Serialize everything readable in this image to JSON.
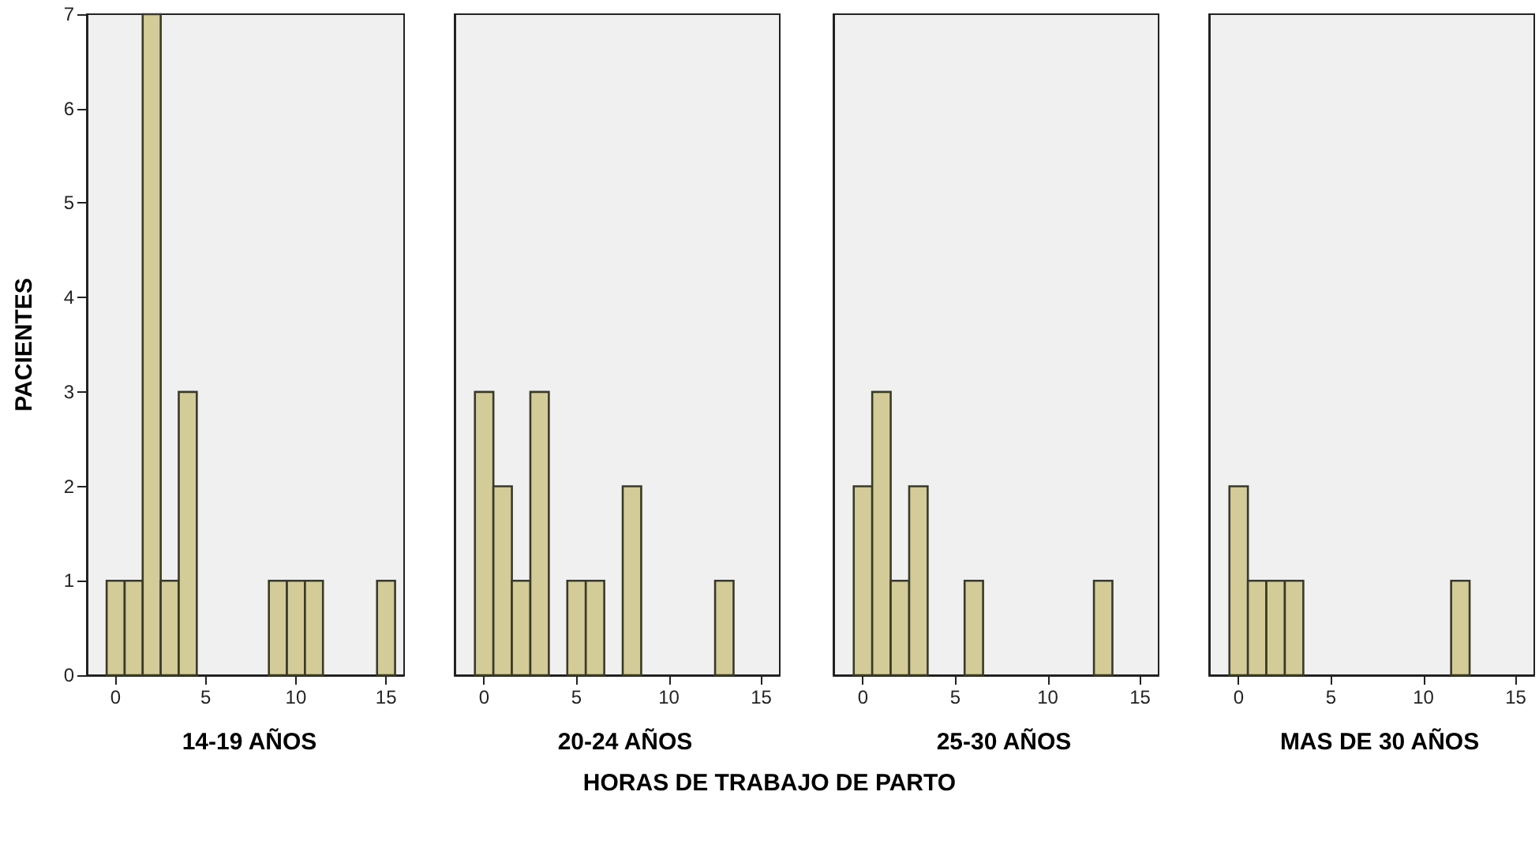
{
  "chart_data": [
    {
      "type": "histogram",
      "title": "14-19 AÑOS",
      "ylabel": "PACIENTES",
      "bins": [
        -0.5,
        0.5,
        1.5,
        2.5,
        3.5,
        4.5,
        5.5,
        6.5,
        7.5,
        8.5,
        9.5,
        10.5,
        11.5,
        12.5,
        13.5,
        14.5,
        15.5
      ],
      "values": [
        1,
        1,
        7,
        1,
        3,
        0,
        0,
        0,
        0,
        1,
        1,
        1,
        0,
        0,
        0,
        1
      ],
      "color": "#d4cc98",
      "xlim": [
        -1.6,
        16
      ],
      "xticks": [
        0,
        5,
        10,
        15
      ],
      "ylim": [
        0,
        7
      ],
      "yticks": [
        0,
        1,
        2,
        3,
        4,
        5,
        6,
        7
      ]
    },
    {
      "type": "histogram",
      "title": "20-24 AÑOS",
      "xlabel": "HORAS DE TRABAJO DE PARTO",
      "bins": [
        -0.5,
        0.5,
        1.5,
        2.5,
        3.5,
        4.5,
        5.5,
        6.5,
        7.5,
        8.5,
        9.5,
        10.5,
        11.5,
        12.5,
        13.5,
        14.5,
        15.5
      ],
      "values": [
        3,
        2,
        1,
        3,
        0,
        1,
        1,
        0,
        2,
        0,
        0,
        0,
        0,
        1,
        0,
        0
      ],
      "color": "#d4cc98",
      "xlim": [
        -1.6,
        16
      ],
      "xticks": [
        0,
        5,
        10,
        15
      ],
      "ylim": [
        0,
        7
      ],
      "yticks": [
        0,
        1,
        2,
        3,
        4,
        5,
        6,
        7
      ],
      "tick_labels": "x"
    },
    {
      "type": "histogram",
      "title": "25-30 AÑOS",
      "bins": [
        -0.5,
        0.5,
        1.5,
        2.5,
        3.5,
        4.5,
        5.5,
        6.5,
        7.5,
        8.5,
        9.5,
        10.5,
        11.5,
        12.5,
        13.5,
        14.5,
        15.5
      ],
      "values": [
        2,
        3,
        1,
        2,
        0,
        0,
        1,
        0,
        0,
        0,
        0,
        0,
        0,
        1,
        0,
        0
      ],
      "color": "#d4cc98",
      "xlim": [
        -1.6,
        16
      ],
      "xticks": [
        0,
        5,
        10,
        15
      ],
      "ylim": [
        0,
        7
      ],
      "yticks": [
        0,
        1,
        2,
        3,
        4,
        5,
        6,
        7
      ],
      "tick_labels": "x"
    },
    {
      "type": "histogram",
      "title": "MAS DE 30 AÑOS",
      "bins": [
        -0.5,
        0.5,
        1.5,
        2.5,
        3.5,
        4.5,
        5.5,
        6.5,
        7.5,
        8.5,
        9.5,
        10.5,
        11.5,
        12.5,
        13.5,
        14.5,
        15.5
      ],
      "values": [
        2,
        1,
        1,
        1,
        0,
        0,
        0,
        0,
        0,
        0,
        0,
        0,
        1,
        0,
        0,
        0
      ],
      "color": "#d4cc98",
      "xlim": [
        -1.6,
        16
      ],
      "xticks": [
        0,
        5,
        10,
        15
      ],
      "ylim": [
        0,
        7
      ],
      "yticks": [
        0,
        1,
        2,
        3,
        4,
        5,
        6,
        7
      ],
      "tick_labels": "x"
    }
  ]
}
